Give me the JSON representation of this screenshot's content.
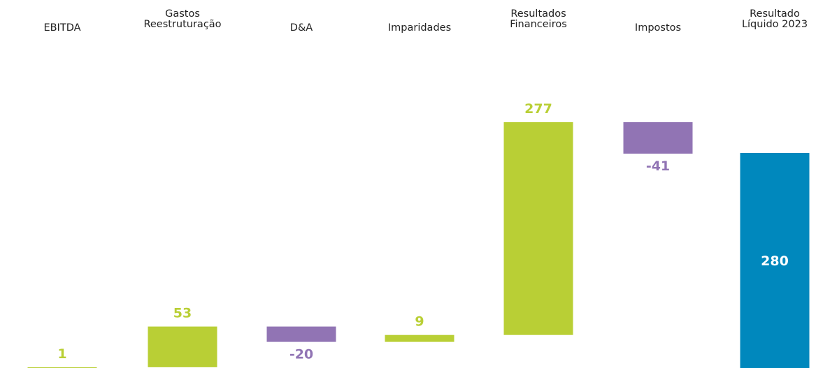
{
  "chart_data": {
    "type": "bar",
    "subtype": "waterfall",
    "categories": [
      [
        "EBITDA"
      ],
      [
        "Gastos",
        "Reestruturação"
      ],
      [
        "D&A"
      ],
      [
        "Imparidades"
      ],
      [
        "Resultados",
        "Financeiros"
      ],
      [
        "Impostos"
      ],
      [
        "Resultado",
        "Líquido 2023"
      ]
    ],
    "values": [
      1,
      53,
      -20,
      9,
      277,
      -41,
      280
    ],
    "value_labels": [
      "1",
      "53",
      "-20",
      "9",
      "277",
      "-41",
      "280"
    ],
    "bar_kinds": [
      "increase",
      "increase",
      "decrease",
      "increase",
      "increase",
      "decrease",
      "total"
    ],
    "colors": {
      "increase": "#b9cf35",
      "decrease": "#9174b4",
      "total": "#0088bd"
    },
    "ylim": [
      0,
      320
    ],
    "grid": false,
    "legend": "none"
  }
}
